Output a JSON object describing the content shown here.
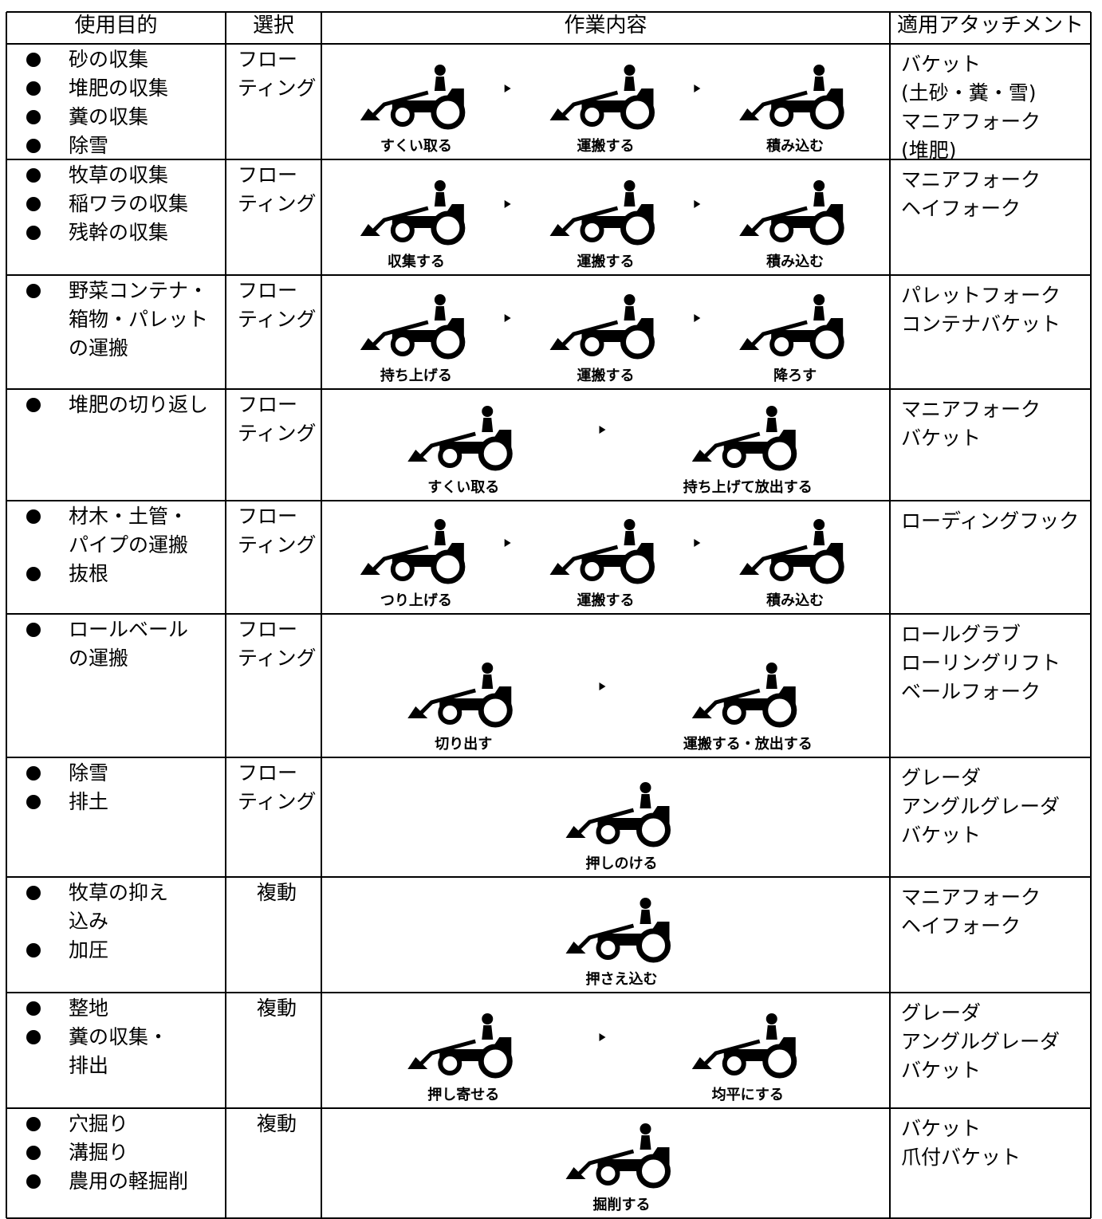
{
  "table": {
    "headers": [
      "使用目的",
      "選択",
      "作業内容",
      "適用アタッチメント"
    ],
    "rows": [
      {
        "purposes": [
          [
            "砂の収集"
          ],
          [
            "堆肥の収集"
          ],
          [
            "糞の収集"
          ],
          [
            "除雪"
          ]
        ],
        "selection": [
          "フロー",
          "ティング"
        ],
        "steps": [
          "すくい取る",
          "運搬する",
          "積み込む"
        ],
        "attachments": [
          "バケット",
          "(土砂・糞・雪)",
          "マニアフォーク",
          "(堆肥)"
        ]
      },
      {
        "purposes": [
          [
            "牧草の収集"
          ],
          [
            "稲ワラの収集"
          ],
          [
            "残幹の収集"
          ]
        ],
        "selection": [
          "フロー",
          "ティング"
        ],
        "steps": [
          "収集する",
          "運搬する",
          "積み込む"
        ],
        "attachments": [
          "マニアフォーク",
          "ヘイフォーク"
        ]
      },
      {
        "purposes": [
          [
            "野菜コンテナ・",
            "箱物・パレット",
            "の運搬"
          ]
        ],
        "selection": [
          "フロー",
          "ティング"
        ],
        "steps": [
          "持ち上げる",
          "運搬する",
          "降ろす"
        ],
        "attachments": [
          "パレットフォーク",
          "コンテナバケット"
        ]
      },
      {
        "purposes": [
          [
            "堆肥の切り返し"
          ]
        ],
        "selection": [
          "フロー",
          "ティング"
        ],
        "steps": [
          "すくい取る",
          "持ち上げて放出する"
        ],
        "attachments": [
          "マニアフォーク",
          "バケット"
        ]
      },
      {
        "purposes": [
          [
            "材木・土管・",
            "パイプの運搬"
          ],
          [
            "抜根"
          ]
        ],
        "selection": [
          "フロー",
          "ティング"
        ],
        "steps": [
          "つり上げる",
          "運搬する",
          "積み込む"
        ],
        "attachments": [
          "ローディングフック"
        ]
      },
      {
        "purposes": [
          [
            "ロールベール",
            "の運搬"
          ]
        ],
        "selection": [
          "フロー",
          "ティング"
        ],
        "steps": [
          "切り出す",
          "運搬する・放出する"
        ],
        "attachments": [
          "ロールグラブ",
          "ローリングリフト",
          "ベールフォーク"
        ]
      },
      {
        "purposes": [
          [
            "除雪"
          ],
          [
            "排土"
          ]
        ],
        "selection": [
          "フロー",
          "ティング"
        ],
        "steps": [
          "押しのける"
        ],
        "attachments": [
          "グレーダ",
          "アングルグレーダ",
          "バケット"
        ]
      },
      {
        "purposes": [
          [
            "牧草の抑え",
            "込み"
          ],
          [
            "加圧"
          ]
        ],
        "selection": [
          "複動"
        ],
        "steps": [
          "押さえ込む"
        ],
        "attachments": [
          "マニアフォーク",
          "ヘイフォーク"
        ]
      },
      {
        "purposes": [
          [
            "整地"
          ],
          [
            "糞の収集・",
            "排出"
          ]
        ],
        "selection": [
          "複動"
        ],
        "steps": [
          "押し寄せる",
          "均平にする"
        ],
        "attachments": [
          "グレーダ",
          "アングルグレーダ",
          "バケット"
        ]
      },
      {
        "purposes": [
          [
            "穴掘り"
          ],
          [
            "溝掘り"
          ],
          [
            "農用の軽掘削"
          ]
        ],
        "selection": [
          "複動"
        ],
        "steps": [
          "掘削する"
        ],
        "attachments": [
          "バケット",
          "爪付バケット"
        ]
      }
    ]
  }
}
